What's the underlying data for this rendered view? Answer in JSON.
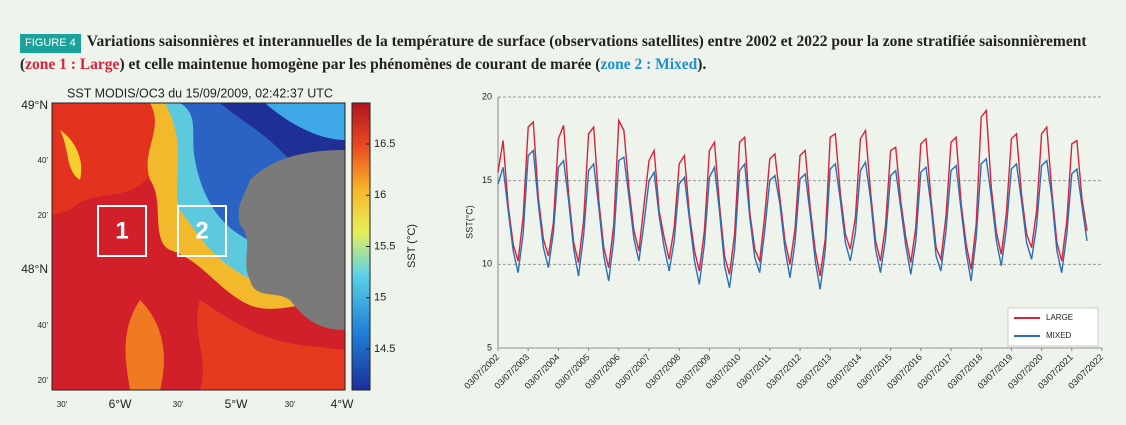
{
  "caption": {
    "badge": "FIGURE 4",
    "text_start": "Variations saisonnières et interannuelles de la température de surface (observations satellites) entre 2002 et 2022 pour la zone stratifiée saisonnièrement (",
    "zone1": "zone 1 : Large",
    "text_mid": ") et celle maintenue homogène par les phénomènes de courant de marée (",
    "zone2": "zone 2 : Mixed",
    "text_end": ")."
  },
  "map": {
    "title": "SST MODIS/OC3 du 15/09/2009, 02:42:37 UTC",
    "lat_labels": [
      "49°N",
      "40'",
      "20'",
      "48°N",
      "40'",
      "20'"
    ],
    "lon_labels": [
      "30'",
      "6°W",
      "30'",
      "5°W",
      "30'",
      "4°W"
    ],
    "zones": [
      "1",
      "2"
    ],
    "colorbar": {
      "label": "SST (°C)",
      "lim": [
        14.1,
        16.9
      ],
      "ticks": [
        16.5,
        16,
        15.5,
        15,
        14.5
      ]
    }
  },
  "chart_data": {
    "type": "line",
    "y_label": "SST(°C)",
    "ylim": [
      5,
      20
    ],
    "yticks": [
      5,
      10,
      15,
      20
    ],
    "grid": true,
    "xlim": [
      "03/07/2002",
      "03/07/2022"
    ],
    "xticks": [
      "03/07/2002",
      "03/07/2003",
      "03/07/2004",
      "03/07/2005",
      "03/07/2006",
      "03/07/2007",
      "03/07/2008",
      "03/07/2009",
      "03/07/2010",
      "03/07/2011",
      "03/07/2012",
      "03/07/2013",
      "03/07/2014",
      "03/07/2015",
      "03/07/2016",
      "03/07/2017",
      "03/07/2018",
      "03/07/2019",
      "03/07/2020",
      "03/07/2021",
      "03/07/2022"
    ],
    "legend": "lower right",
    "x": [
      "03/07/2002",
      "03/09/2002",
      "03/11/2002",
      "03/01/2003",
      "03/03/2003",
      "03/05/2003",
      "03/07/2003",
      "03/09/2003",
      "03/11/2003",
      "03/01/2004",
      "03/03/2004",
      "03/05/2004",
      "03/07/2004",
      "03/09/2004",
      "03/11/2004",
      "03/01/2005",
      "03/03/2005",
      "03/05/2005",
      "03/07/2005",
      "03/09/2005",
      "03/11/2005",
      "03/01/2006",
      "03/03/2006",
      "03/05/2006",
      "03/07/2006",
      "03/09/2006",
      "03/11/2006",
      "03/01/2007",
      "03/03/2007",
      "03/05/2007",
      "03/07/2007",
      "03/09/2007",
      "03/11/2007",
      "03/01/2008",
      "03/03/2008",
      "03/05/2008",
      "03/07/2008",
      "03/09/2008",
      "03/11/2008",
      "03/01/2009",
      "03/03/2009",
      "03/05/2009",
      "03/07/2009",
      "03/09/2009",
      "03/11/2009",
      "03/01/2010",
      "03/03/2010",
      "03/05/2010",
      "03/07/2010",
      "03/09/2010",
      "03/11/2010",
      "03/01/2011",
      "03/03/2011",
      "03/05/2011",
      "03/07/2011",
      "03/09/2011",
      "03/11/2011",
      "03/01/2012",
      "03/03/2012",
      "03/05/2012",
      "03/07/2012",
      "03/09/2012",
      "03/11/2012",
      "03/01/2013",
      "03/03/2013",
      "03/05/2013",
      "03/07/2013",
      "03/09/2013",
      "03/11/2013",
      "03/01/2014",
      "03/03/2014",
      "03/05/2014",
      "03/07/2014",
      "03/09/2014",
      "03/11/2014",
      "03/01/2015",
      "03/03/2015",
      "03/05/2015",
      "03/07/2015",
      "03/09/2015",
      "03/11/2015",
      "03/01/2016",
      "03/03/2016",
      "03/05/2016",
      "03/07/2016",
      "03/09/2016",
      "03/11/2016",
      "03/01/2017",
      "03/03/2017",
      "03/05/2017",
      "03/07/2017",
      "03/09/2017",
      "03/11/2017",
      "03/01/2018",
      "03/03/2018",
      "03/05/2018",
      "03/07/2018",
      "03/09/2018",
      "03/11/2018",
      "03/01/2019",
      "03/03/2019",
      "03/05/2019",
      "03/07/2019",
      "03/09/2019",
      "03/11/2019",
      "03/01/2020",
      "03/03/2020",
      "03/05/2020",
      "03/07/2020",
      "03/09/2020",
      "03/11/2020",
      "03/01/2021",
      "03/03/2021",
      "03/05/2021",
      "03/07/2021",
      "03/09/2021",
      "03/11/2021",
      "03/01/2022"
    ],
    "series": [
      {
        "name": "LARGE",
        "color": "#d8233a",
        "values": [
          15.5,
          17.4,
          13.5,
          11.2,
          10.2,
          12.8,
          18.2,
          18.5,
          14.0,
          11.5,
          10.5,
          12.5,
          17.5,
          18.3,
          14.2,
          11.3,
          10.1,
          12.6,
          17.8,
          18.2,
          13.8,
          11.0,
          9.8,
          12.4,
          18.6,
          18.0,
          14.5,
          12.0,
          10.8,
          13.5,
          16.2,
          16.8,
          13.2,
          11.6,
          10.3,
          12.2,
          16.0,
          16.5,
          13.0,
          10.8,
          9.6,
          12.0,
          16.8,
          17.3,
          13.5,
          10.5,
          9.4,
          11.8,
          17.3,
          17.6,
          13.1,
          10.9,
          10.2,
          12.9,
          16.3,
          16.6,
          14.0,
          11.4,
          10.0,
          12.1,
          16.5,
          16.8,
          13.4,
          10.8,
          9.3,
          11.5,
          17.6,
          17.8,
          14.2,
          11.8,
          10.9,
          12.8,
          17.5,
          18.0,
          14.3,
          11.4,
          10.2,
          12.3,
          16.8,
          17.0,
          13.8,
          11.6,
          10.1,
          12.2,
          17.2,
          17.5,
          13.9,
          11.0,
          10.3,
          12.9,
          17.3,
          17.6,
          13.6,
          11.2,
          9.7,
          12.4,
          18.8,
          19.2,
          14.5,
          11.9,
          10.6,
          13.0,
          17.5,
          17.8,
          14.2,
          11.8,
          11.0,
          13.2,
          17.8,
          18.2,
          14.4,
          11.3,
          10.2,
          12.6,
          17.2,
          17.4,
          13.9,
          12.0
        ]
      },
      {
        "name": "MIXED",
        "color": "#2c6fb2",
        "values": [
          14.8,
          15.8,
          13.2,
          10.8,
          9.5,
          11.8,
          16.5,
          16.8,
          13.6,
          11.0,
          9.8,
          11.9,
          15.8,
          16.2,
          13.8,
          10.9,
          9.3,
          11.7,
          15.6,
          16.0,
          13.4,
          10.5,
          9.0,
          11.5,
          16.2,
          16.4,
          14.0,
          11.5,
          10.2,
          12.4,
          15.0,
          15.5,
          12.9,
          11.0,
          9.6,
          11.4,
          14.8,
          15.2,
          12.7,
          10.2,
          8.8,
          11.2,
          15.2,
          15.8,
          13.1,
          9.9,
          8.6,
          10.9,
          15.6,
          16.0,
          12.8,
          10.4,
          9.5,
          12.0,
          15.0,
          15.3,
          13.6,
          10.9,
          9.2,
          11.3,
          15.1,
          15.4,
          13.0,
          10.2,
          8.5,
          10.8,
          15.7,
          16.0,
          13.8,
          11.3,
          10.2,
          11.9,
          15.6,
          16.1,
          13.9,
          10.9,
          9.5,
          11.5,
          15.3,
          15.6,
          13.4,
          11.1,
          9.4,
          11.4,
          15.5,
          15.8,
          13.5,
          10.5,
          9.6,
          12.0,
          15.6,
          15.9,
          13.2,
          10.7,
          9.0,
          11.6,
          16.0,
          16.3,
          14.0,
          11.4,
          9.9,
          12.1,
          15.7,
          16.0,
          13.8,
          11.3,
          10.3,
          12.3,
          15.9,
          16.2,
          14.0,
          10.8,
          9.5,
          11.8,
          15.4,
          15.7,
          13.5,
          11.4
        ]
      }
    ]
  }
}
